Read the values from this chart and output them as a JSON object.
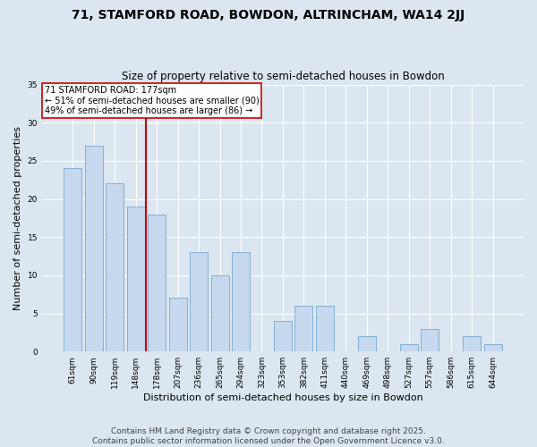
{
  "title": "71, STAMFORD ROAD, BOWDON, ALTRINCHAM, WA14 2JJ",
  "subtitle": "Size of property relative to semi-detached houses in Bowdon",
  "xlabel": "Distribution of semi-detached houses by size in Bowdon",
  "ylabel": "Number of semi-detached properties",
  "categories": [
    "61sqm",
    "90sqm",
    "119sqm",
    "148sqm",
    "178sqm",
    "207sqm",
    "236sqm",
    "265sqm",
    "294sqm",
    "323sqm",
    "353sqm",
    "382sqm",
    "411sqm",
    "440sqm",
    "469sqm",
    "498sqm",
    "527sqm",
    "557sqm",
    "586sqm",
    "615sqm",
    "644sqm"
  ],
  "values": [
    24,
    27,
    22,
    19,
    18,
    7,
    13,
    10,
    13,
    0,
    4,
    6,
    6,
    0,
    2,
    0,
    1,
    3,
    0,
    2,
    1
  ],
  "bar_color": "#c5d8ed",
  "bar_edge_color": "#7aa8cc",
  "vline_color": "#cc0000",
  "annotation_title": "71 STAMFORD ROAD: 177sqm",
  "annotation_line1": "← 51% of semi-detached houses are smaller (90)",
  "annotation_line2": "49% of semi-detached houses are larger (86) →",
  "annotation_box_color": "#ffffff",
  "annotation_box_edge": "#cc0000",
  "ylim": [
    0,
    35
  ],
  "yticks": [
    0,
    5,
    10,
    15,
    20,
    25,
    30,
    35
  ],
  "bg_color": "#dce6f0",
  "plot_bg_color": "#dce6f0",
  "footer": "Contains HM Land Registry data © Crown copyright and database right 2025.\nContains public sector information licensed under the Open Government Licence v3.0.",
  "title_fontsize": 10,
  "subtitle_fontsize": 8.5,
  "xlabel_fontsize": 8,
  "ylabel_fontsize": 8,
  "tick_fontsize": 6.5,
  "footer_fontsize": 6.5,
  "annotation_fontsize": 7
}
